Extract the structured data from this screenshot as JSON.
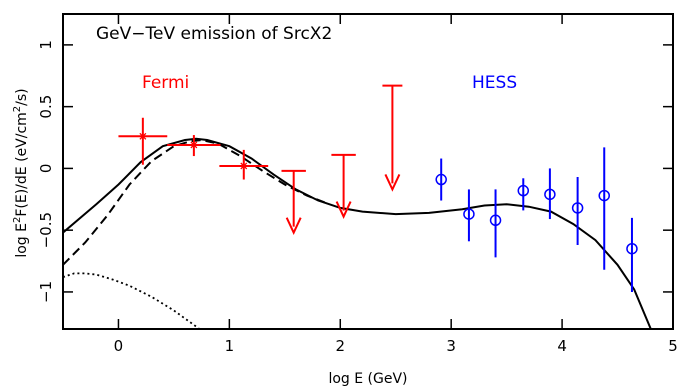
{
  "chart_data": {
    "type": "scatter",
    "title": "GeV−TeV emission of SrcX2",
    "xlabel": "log E (GeV)",
    "ylabel_parts": [
      "log E",
      "2",
      "F(E)/dE (eV/cm",
      "2",
      "/s)"
    ],
    "xlim": [
      -0.5,
      5.0
    ],
    "ylim": [
      -1.3,
      1.25
    ],
    "xticks": [
      0,
      1,
      2,
      3,
      4,
      5
    ],
    "yticks": [
      -1,
      -0.5,
      0,
      0.5,
      1
    ],
    "xtick_labels": [
      "0",
      "1",
      "2",
      "3",
      "4",
      "5"
    ],
    "ytick_labels": [
      "−1",
      "−0.5",
      "0",
      "0.5",
      "1"
    ],
    "grid": false,
    "series": [
      {
        "name": "Fermi",
        "color": "#ff0000",
        "marker": "cross",
        "points": [
          {
            "x": 0.22,
            "y": 0.26,
            "xerr": [
              0.22,
              0.22
            ],
            "yerr": [
              0.23,
              0.15
            ]
          },
          {
            "x": 0.68,
            "y": 0.19,
            "xerr": [
              0.24,
              0.24
            ],
            "yerr": [
              0.09,
              0.08
            ]
          },
          {
            "x": 1.13,
            "y": 0.02,
            "xerr": [
              0.22,
              0.22
            ],
            "yerr": [
              0.11,
              0.13
            ]
          }
        ],
        "upper_limits": [
          {
            "x": 1.58,
            "y": -0.02,
            "xerr": 0.11,
            "arrow_to": -0.52
          },
          {
            "x": 2.03,
            "y": 0.11,
            "xerr": 0.11,
            "arrow_to": -0.39
          },
          {
            "x": 2.47,
            "y": 0.67,
            "xerr": 0.09,
            "arrow_to": -0.17
          }
        ]
      },
      {
        "name": "HESS",
        "color": "#0000ff",
        "marker": "circle",
        "points": [
          {
            "x": 2.91,
            "y": -0.09,
            "yerr": [
              0.17,
              0.17
            ]
          },
          {
            "x": 3.16,
            "y": -0.37,
            "yerr": [
              0.22,
              0.2
            ]
          },
          {
            "x": 3.4,
            "y": -0.42,
            "yerr": [
              0.3,
              0.25
            ]
          },
          {
            "x": 3.65,
            "y": -0.18,
            "yerr": [
              0.16,
              0.1
            ]
          },
          {
            "x": 3.89,
            "y": -0.21,
            "yerr": [
              0.2,
              0.21
            ]
          },
          {
            "x": 4.14,
            "y": -0.32,
            "yerr": [
              0.3,
              0.25
            ]
          },
          {
            "x": 4.38,
            "y": -0.22,
            "yerr": [
              0.6,
              0.39
            ]
          },
          {
            "x": 4.63,
            "y": -0.65,
            "yerr": [
              0.35,
              0.25
            ]
          }
        ]
      }
    ],
    "curves": [
      {
        "style": "solid",
        "color": "#000000",
        "points": [
          [
            -0.5,
            -0.52
          ],
          [
            -0.2,
            -0.29
          ],
          [
            0.0,
            -0.13
          ],
          [
            0.2,
            0.05
          ],
          [
            0.4,
            0.18
          ],
          [
            0.6,
            0.23
          ],
          [
            0.7,
            0.24
          ],
          [
            0.8,
            0.23
          ],
          [
            1.0,
            0.18
          ],
          [
            1.2,
            0.08
          ],
          [
            1.4,
            -0.05
          ],
          [
            1.6,
            -0.17
          ],
          [
            1.8,
            -0.26
          ],
          [
            2.0,
            -0.32
          ],
          [
            2.2,
            -0.35
          ],
          [
            2.5,
            -0.37
          ],
          [
            2.8,
            -0.36
          ],
          [
            3.1,
            -0.33
          ],
          [
            3.3,
            -0.3
          ],
          [
            3.5,
            -0.29
          ],
          [
            3.7,
            -0.31
          ],
          [
            3.9,
            -0.35
          ],
          [
            4.1,
            -0.45
          ],
          [
            4.3,
            -0.58
          ],
          [
            4.5,
            -0.78
          ],
          [
            4.65,
            -0.98
          ],
          [
            4.8,
            -1.3
          ]
        ]
      },
      {
        "style": "dashed",
        "color": "#000000",
        "points": [
          [
            -0.5,
            -0.78
          ],
          [
            -0.3,
            -0.6
          ],
          [
            -0.1,
            -0.38
          ],
          [
            0.1,
            -0.13
          ],
          [
            0.3,
            0.06
          ],
          [
            0.5,
            0.18
          ],
          [
            0.65,
            0.22
          ],
          [
            0.75,
            0.23
          ],
          [
            0.9,
            0.2
          ],
          [
            1.1,
            0.1
          ],
          [
            1.3,
            -0.02
          ],
          [
            1.5,
            -0.13
          ],
          [
            1.7,
            -0.22
          ],
          [
            1.9,
            -0.29
          ]
        ]
      },
      {
        "style": "dotted",
        "color": "#000000",
        "points": [
          [
            -0.5,
            -0.88
          ],
          [
            -0.4,
            -0.85
          ],
          [
            -0.3,
            -0.85
          ],
          [
            -0.2,
            -0.86
          ],
          [
            -0.05,
            -0.9
          ],
          [
            0.1,
            -0.95
          ],
          [
            0.3,
            -1.04
          ],
          [
            0.5,
            -1.15
          ],
          [
            0.7,
            -1.28
          ],
          [
            0.73,
            -1.3
          ]
        ]
      }
    ],
    "annotations": [
      {
        "text": "Fermi",
        "color": "#ff0000"
      },
      {
        "text": "HESS",
        "color": "#0000ff"
      }
    ]
  }
}
